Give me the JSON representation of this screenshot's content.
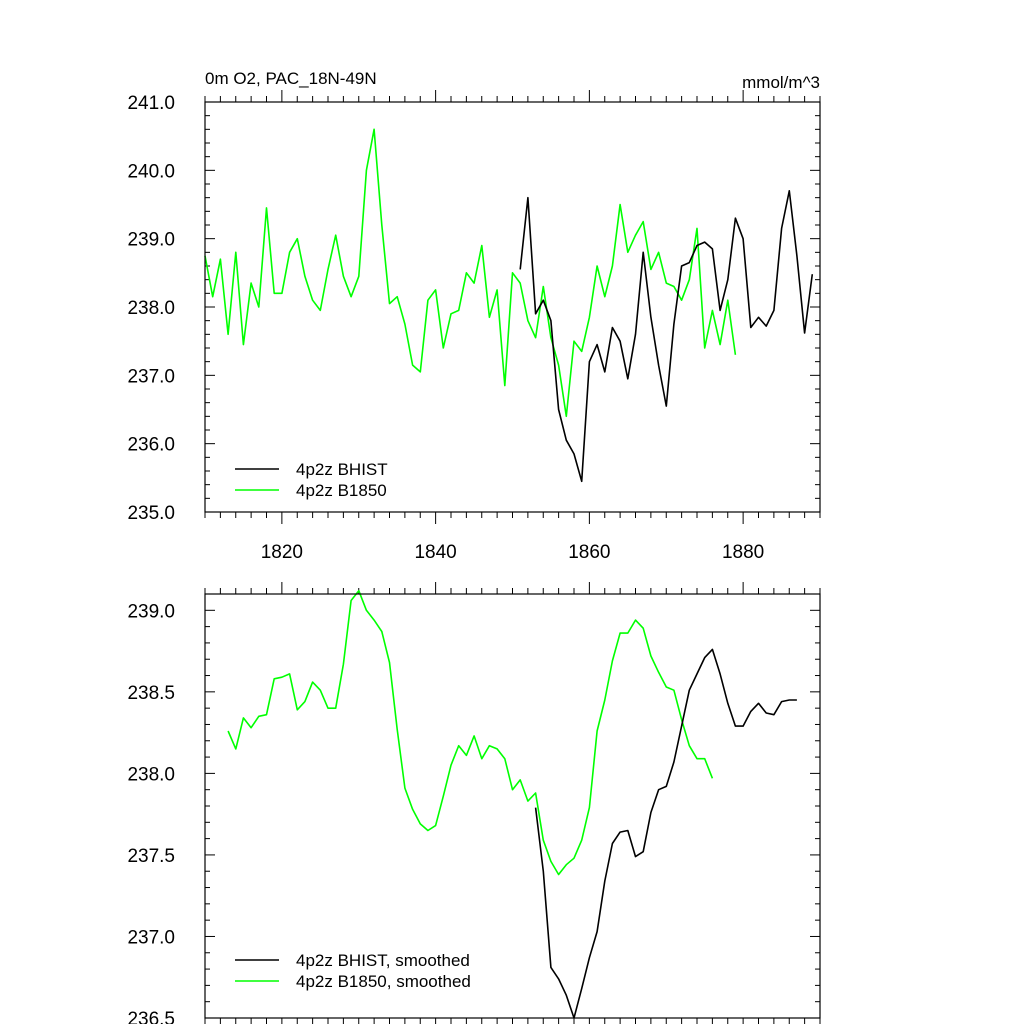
{
  "chart_data": [
    {
      "type": "line",
      "title_left": "0m O2, PAC_18N-49N",
      "title_right": "mmol/m^3",
      "xlim": [
        1810,
        1890
      ],
      "ylim": [
        235.0,
        241.0
      ],
      "xticks": [
        1820,
        1840,
        1860,
        1880
      ],
      "xtick_labels": [
        "1820",
        "1840",
        "1860",
        "1880"
      ],
      "yticks": [
        235.0,
        236.0,
        237.0,
        238.0,
        239.0,
        240.0,
        241.0
      ],
      "ytick_labels": [
        "235.0",
        "236.0",
        "237.0",
        "238.0",
        "239.0",
        "240.0",
        "241.0"
      ],
      "legend_position": "bottom-left",
      "series": [
        {
          "name": "4p2z BHIST",
          "color": "#000000",
          "x": [
            1851,
            1852,
            1853,
            1854,
            1855,
            1856,
            1857,
            1858,
            1859,
            1860,
            1861,
            1862,
            1863,
            1864,
            1865,
            1866,
            1867,
            1868,
            1869,
            1870,
            1871,
            1872,
            1873,
            1874,
            1875,
            1876,
            1877,
            1878,
            1879,
            1880,
            1881,
            1882,
            1883,
            1884,
            1885,
            1886,
            1887,
            1888,
            1889
          ],
          "values": [
            238.55,
            239.6,
            237.9,
            238.1,
            237.8,
            236.5,
            236.05,
            235.85,
            235.45,
            237.2,
            237.45,
            237.05,
            237.7,
            237.5,
            236.95,
            237.6,
            238.8,
            237.85,
            237.15,
            236.55,
            237.75,
            238.6,
            238.65,
            238.9,
            238.95,
            238.85,
            237.95,
            238.4,
            239.3,
            239.0,
            237.7,
            237.85,
            237.72,
            237.95,
            239.15,
            239.7,
            238.75,
            237.62,
            238.48
          ]
        },
        {
          "name": "4p2z B1850",
          "color": "#00ff00",
          "x": [
            1810,
            1811,
            1812,
            1813,
            1814,
            1815,
            1816,
            1817,
            1818,
            1819,
            1820,
            1821,
            1822,
            1823,
            1824,
            1825,
            1826,
            1827,
            1828,
            1829,
            1830,
            1831,
            1832,
            1833,
            1834,
            1835,
            1836,
            1837,
            1838,
            1839,
            1840,
            1841,
            1842,
            1843,
            1844,
            1845,
            1846,
            1847,
            1848,
            1849,
            1850,
            1851,
            1852,
            1853,
            1854,
            1855,
            1856,
            1857,
            1858,
            1859,
            1860,
            1861,
            1862,
            1863,
            1864,
            1865,
            1866,
            1867,
            1868,
            1869,
            1870,
            1871,
            1872,
            1873,
            1874,
            1875,
            1876,
            1877,
            1878,
            1879
          ],
          "values": [
            238.75,
            238.15,
            238.7,
            237.6,
            238.8,
            237.45,
            238.35,
            238.0,
            239.45,
            238.2,
            238.2,
            238.8,
            239.0,
            238.45,
            238.1,
            237.95,
            238.55,
            239.05,
            238.45,
            238.15,
            238.45,
            240.0,
            240.6,
            239.2,
            238.05,
            238.15,
            237.75,
            237.15,
            237.05,
            238.1,
            238.25,
            237.4,
            237.9,
            237.95,
            238.5,
            238.35,
            238.9,
            237.85,
            238.25,
            236.85,
            238.5,
            238.35,
            237.8,
            237.55,
            238.3,
            237.55,
            237.15,
            236.4,
            237.5,
            237.35,
            237.85,
            238.6,
            238.15,
            238.6,
            239.5,
            238.8,
            239.05,
            239.25,
            238.55,
            238.8,
            238.35,
            238.3,
            238.1,
            238.4,
            239.15,
            237.4,
            237.95,
            237.45,
            238.1,
            237.3
          ]
        }
      ]
    },
    {
      "type": "line",
      "xlim": [
        1810,
        1890
      ],
      "ylim": [
        236.5,
        239.1
      ],
      "xticks": [
        1820,
        1840,
        1860,
        1880
      ],
      "yticks": [
        236.5,
        237.0,
        237.5,
        238.0,
        238.5,
        239.0
      ],
      "ytick_labels": [
        "236.5",
        "237.0",
        "237.5",
        "238.0",
        "238.5",
        "239.0"
      ],
      "legend_position": "bottom-left",
      "series": [
        {
          "name": "4p2z BHIST, smoothed",
          "color": "#000000",
          "x": [
            1853,
            1854,
            1855,
            1856,
            1857,
            1858,
            1859,
            1860,
            1861,
            1862,
            1863,
            1864,
            1865,
            1866,
            1867,
            1868,
            1869,
            1870,
            1871,
            1872,
            1873,
            1874,
            1875,
            1876,
            1877,
            1878,
            1879,
            1880,
            1881,
            1882,
            1883,
            1884,
            1885,
            1886,
            1887
          ],
          "values": [
            237.79,
            237.4,
            236.81,
            236.74,
            236.64,
            236.5,
            236.68,
            236.87,
            237.03,
            237.34,
            237.57,
            237.64,
            237.65,
            237.49,
            237.52,
            237.76,
            237.9,
            237.92,
            238.07,
            238.29,
            238.51,
            238.61,
            238.71,
            238.76,
            238.61,
            238.43,
            238.29,
            238.29,
            238.38,
            238.43,
            238.37,
            238.36,
            238.44,
            238.45,
            238.45
          ]
        },
        {
          "name": "4p2z B1850, smoothed",
          "color": "#00ff00",
          "x": [
            1813,
            1814,
            1815,
            1816,
            1817,
            1818,
            1819,
            1820,
            1821,
            1822,
            1823,
            1824,
            1825,
            1826,
            1827,
            1828,
            1829,
            1830,
            1831,
            1832,
            1833,
            1834,
            1835,
            1836,
            1837,
            1838,
            1839,
            1840,
            1841,
            1842,
            1843,
            1844,
            1845,
            1846,
            1847,
            1848,
            1849,
            1850,
            1851,
            1852,
            1853,
            1854,
            1855,
            1856,
            1857,
            1858,
            1859,
            1860,
            1861,
            1862,
            1863,
            1864,
            1865,
            1866,
            1867,
            1868,
            1869,
            1870,
            1871,
            1872,
            1873,
            1874,
            1875,
            1876
          ],
          "values": [
            238.26,
            238.15,
            238.34,
            238.28,
            238.35,
            238.36,
            238.58,
            238.59,
            238.61,
            238.39,
            238.44,
            238.56,
            238.51,
            238.4,
            238.4,
            238.67,
            239.06,
            239.12,
            239.0,
            238.94,
            238.87,
            238.68,
            238.27,
            237.91,
            237.78,
            237.69,
            237.65,
            237.68,
            237.86,
            238.05,
            238.17,
            238.11,
            238.23,
            238.09,
            238.17,
            238.15,
            238.09,
            237.9,
            237.96,
            237.83,
            237.88,
            237.59,
            237.46,
            237.38,
            237.44,
            237.48,
            237.59,
            237.79,
            238.26,
            238.45,
            238.69,
            238.86,
            238.86,
            238.94,
            238.89,
            238.72,
            238.62,
            238.53,
            238.51,
            238.33,
            238.17,
            238.09,
            238.09,
            237.97
          ]
        }
      ]
    }
  ]
}
